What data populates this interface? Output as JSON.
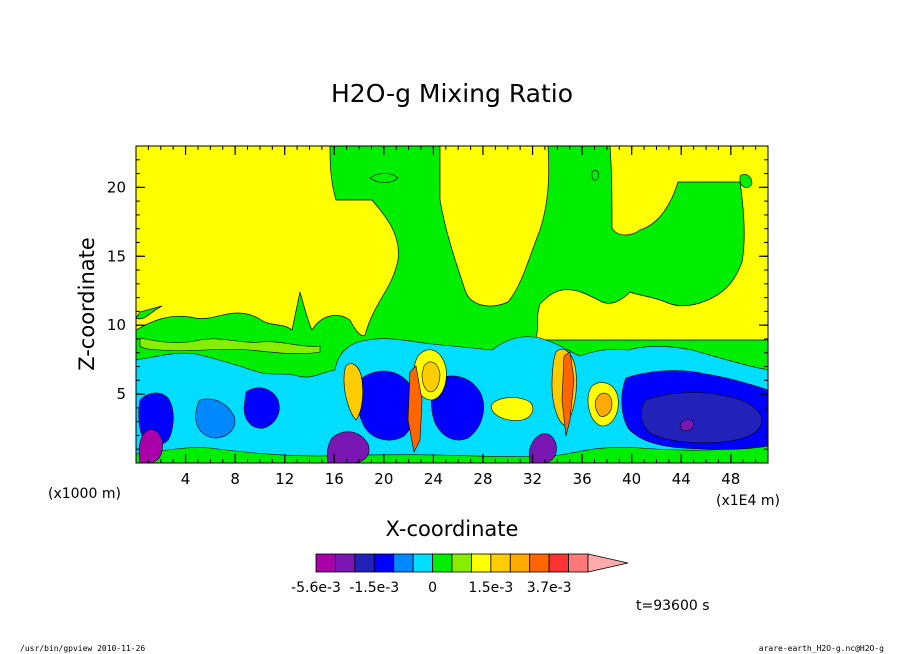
{
  "chart_data": {
    "type": "heatmap",
    "title": "H2O-g Mixing Ratio",
    "xlabel": "X-coordinate",
    "ylabel": "Z-coordinate",
    "x_unit_label": "(x1000 m)",
    "x_scale_label": "(x1E4 m)",
    "xlim": [
      0,
      51
    ],
    "ylim": [
      0,
      23
    ],
    "x_ticks": [
      4,
      8,
      12,
      16,
      20,
      24,
      28,
      32,
      36,
      40,
      44,
      48
    ],
    "y_ticks": [
      5,
      10,
      15,
      20
    ],
    "time_label": "t=93600 s",
    "colorbar": {
      "labels": [
        {
          "text": "-5.6e-3",
          "value": -0.0056
        },
        {
          "text": "-1.5e-3",
          "value": -0.0015
        },
        {
          "text": "0",
          "value": 0
        },
        {
          "text": "1.5e-3",
          "value": 0.0015
        },
        {
          "text": "3.7e-3",
          "value": 0.0037
        }
      ],
      "levels": [
        {
          "value": -0.0056,
          "color": "#aa00aa"
        },
        {
          "value": -0.0035,
          "color": "#7a16b4"
        },
        {
          "value": -0.0025,
          "color": "#2222bb"
        },
        {
          "value": -0.0015,
          "color": "#0000ff"
        },
        {
          "value": -0.001,
          "color": "#0088ff"
        },
        {
          "value": -0.0005,
          "color": "#00ddff"
        },
        {
          "value": 0.0,
          "color": "#00ee00"
        },
        {
          "value": 0.0005,
          "color": "#88ee00"
        },
        {
          "value": 0.001,
          "color": "#ffff00"
        },
        {
          "value": 0.0015,
          "color": "#ffcc00"
        },
        {
          "value": 0.0022,
          "color": "#ffaa00"
        },
        {
          "value": 0.003,
          "color": "#ff6600"
        },
        {
          "value": 0.0037,
          "color": "#ff3333"
        },
        {
          "value": 0.0045,
          "color": "#ff7777"
        },
        {
          "value": 0.0055,
          "color": "#ffaaaa"
        }
      ]
    }
  },
  "footer": {
    "left": "/usr/bin/gpview  2010-11-26",
    "right": "arare-earth_H2O-g.nc@H2O-g"
  }
}
